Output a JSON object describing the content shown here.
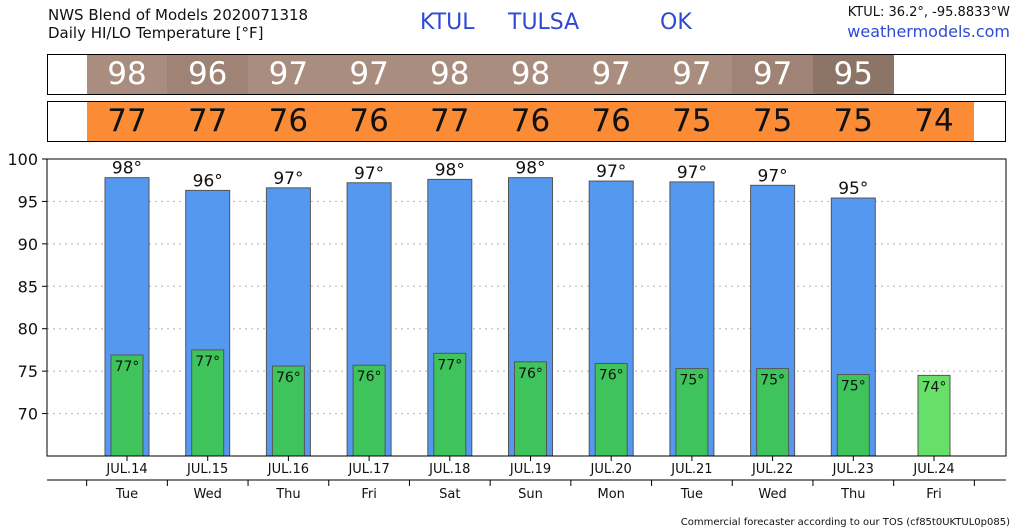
{
  "header": {
    "line1": "NWS Blend of Models 2020071318",
    "line2": "Daily HI/LO Temperature [°F]",
    "station_id": "KTUL",
    "city": "TULSA",
    "state": "OK",
    "coords": "KTUL: 36.2°, -95.8833°W",
    "website": "weathermodels.com"
  },
  "hi_strip": {
    "values": [
      "98",
      "96",
      "97",
      "97",
      "98",
      "98",
      "97",
      "97",
      "97",
      "95"
    ],
    "colors": [
      "#a98e80",
      "#9f8375",
      "#a98e80",
      "#a98e80",
      "#a98e80",
      "#a98e80",
      "#a98e80",
      "#a98e80",
      "#9f8375",
      "#8c7466"
    ]
  },
  "lo_strip": {
    "values": [
      "77",
      "77",
      "76",
      "76",
      "77",
      "76",
      "76",
      "75",
      "75",
      "75",
      "74"
    ],
    "color": "#fb8c35"
  },
  "chart_data": {
    "type": "bar",
    "categories": [
      "JUL.14",
      "JUL.15",
      "JUL.16",
      "JUL.17",
      "JUL.18",
      "JUL.19",
      "JUL.20",
      "JUL.21",
      "JUL.22",
      "JUL.23",
      "JUL.24"
    ],
    "weekdays": [
      "Tue",
      "Wed",
      "Thu",
      "Fri",
      "Sat",
      "Sun",
      "Mon",
      "Tue",
      "Wed",
      "Thu",
      "Fri"
    ],
    "series": [
      {
        "values": [
          97.8,
          96.3,
          96.6,
          97.2,
          97.6,
          97.8,
          97.4,
          97.3,
          96.9,
          95.4,
          null
        ],
        "labels": [
          "98°",
          "96°",
          "97°",
          "97°",
          "98°",
          "98°",
          "97°",
          "97°",
          "97°",
          "95°",
          ""
        ],
        "color": "#5598f0"
      },
      {
        "values": [
          76.9,
          77.5,
          75.6,
          75.7,
          77.1,
          76.1,
          75.9,
          75.3,
          75.3,
          74.6,
          74.5
        ],
        "labels": [
          "77°",
          "77°",
          "76°",
          "76°",
          "77°",
          "76°",
          "76°",
          "75°",
          "75°",
          "75°",
          "74°"
        ],
        "color": "#3ec45a",
        "last_color": "#67e06a"
      }
    ],
    "ylim": [
      65,
      100
    ],
    "yticks": [
      70,
      75,
      80,
      85,
      90,
      95,
      100
    ],
    "grid": true
  },
  "footer": "Commercial forecaster according to our TOS (cf85t0UKTUL0p085)"
}
